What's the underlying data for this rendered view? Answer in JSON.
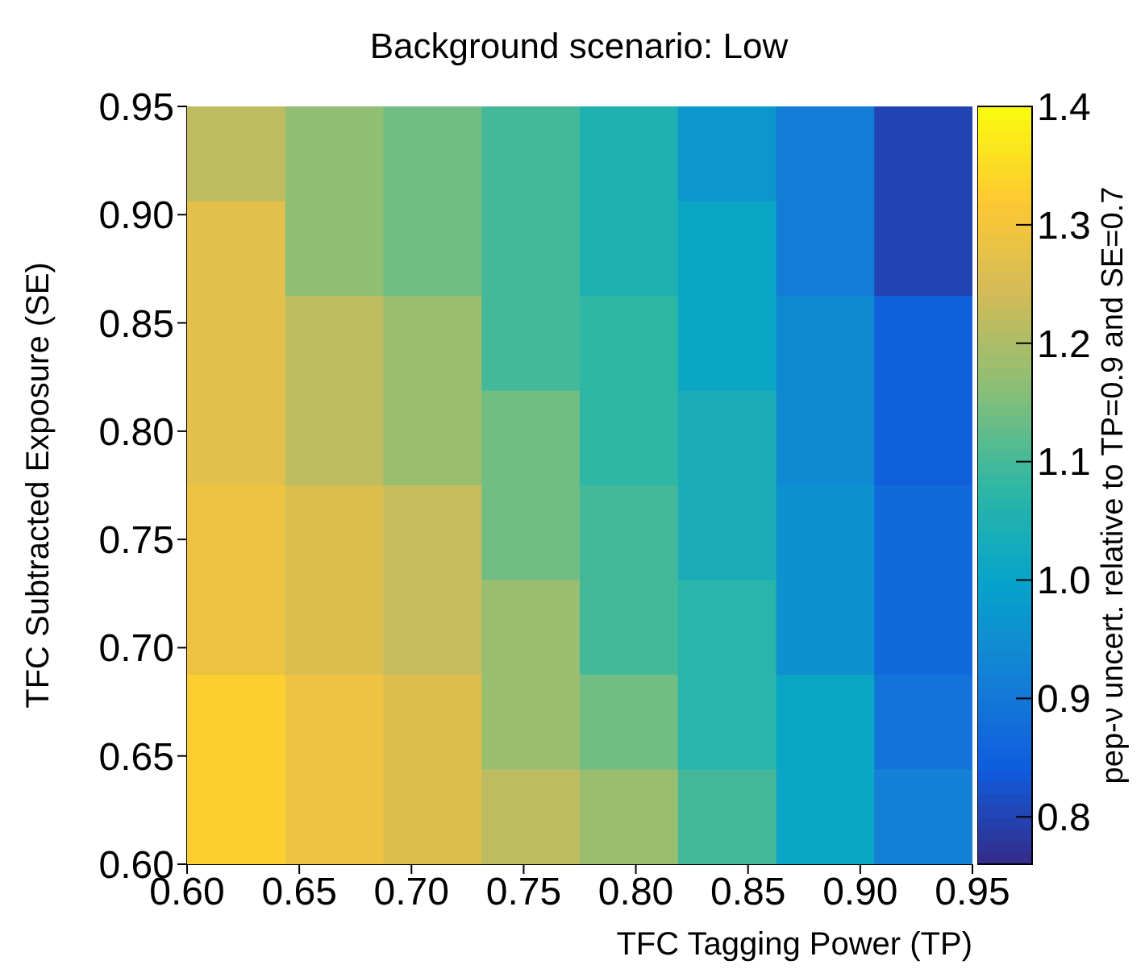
{
  "chart_data": {
    "type": "heatmap",
    "title": "Background scenario: Low",
    "xlabel": "TFC Tagging Power (TP)",
    "ylabel": "TFC Subtracted Exposure (SE)",
    "clabel": "pep-ν uncert. relative to TP=0.9 and SE=0.7",
    "xlim": [
      0.6,
      0.95
    ],
    "ylim": [
      0.6,
      0.95
    ],
    "xticks": [
      {
        "value": 0.6,
        "label": "0.60"
      },
      {
        "value": 0.65,
        "label": "0.65"
      },
      {
        "value": 0.7,
        "label": "0.70"
      },
      {
        "value": 0.75,
        "label": "0.75"
      },
      {
        "value": 0.8,
        "label": "0.80"
      },
      {
        "value": 0.85,
        "label": "0.85"
      },
      {
        "value": 0.9,
        "label": "0.90"
      },
      {
        "value": 0.95,
        "label": "0.95"
      }
    ],
    "yticks": [
      {
        "value": 0.6,
        "label": "0.60"
      },
      {
        "value": 0.65,
        "label": "0.65"
      },
      {
        "value": 0.7,
        "label": "0.70"
      },
      {
        "value": 0.75,
        "label": "0.75"
      },
      {
        "value": 0.8,
        "label": "0.80"
      },
      {
        "value": 0.85,
        "label": "0.85"
      },
      {
        "value": 0.9,
        "label": "0.90"
      },
      {
        "value": 0.95,
        "label": "0.95"
      }
    ],
    "clim": [
      0.76,
      1.4
    ],
    "cticks": [
      {
        "value": 0.8,
        "label": "0.8"
      },
      {
        "value": 0.9,
        "label": "0.9"
      },
      {
        "value": 1.0,
        "label": "1.0"
      },
      {
        "value": 1.1,
        "label": "1.1"
      },
      {
        "value": 1.2,
        "label": "1.2"
      },
      {
        "value": 1.3,
        "label": "1.3"
      },
      {
        "value": 1.4,
        "label": "1.4"
      }
    ],
    "cells": [
      [
        1.22,
        1.17,
        1.14,
        1.1,
        1.05,
        0.97,
        0.91,
        0.8
      ],
      [
        1.27,
        1.17,
        1.14,
        1.1,
        1.05,
        1.01,
        0.91,
        0.8
      ],
      [
        1.27,
        1.22,
        1.18,
        1.1,
        1.08,
        1.01,
        0.94,
        0.85
      ],
      [
        1.27,
        1.22,
        1.18,
        1.14,
        1.08,
        1.04,
        0.94,
        0.85
      ],
      [
        1.29,
        1.26,
        1.23,
        1.14,
        1.1,
        1.04,
        0.96,
        0.87
      ],
      [
        1.29,
        1.26,
        1.23,
        1.18,
        1.1,
        1.07,
        0.96,
        0.87
      ],
      [
        1.33,
        1.29,
        1.26,
        1.18,
        1.14,
        1.07,
        1.01,
        0.89
      ],
      [
        1.33,
        1.29,
        1.26,
        1.22,
        1.18,
        1.1,
        1.01,
        0.92
      ]
    ],
    "grid": false
  }
}
